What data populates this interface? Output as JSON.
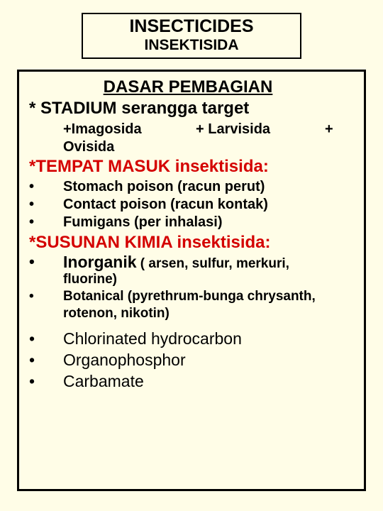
{
  "title": {
    "line1": "INSECTICIDES",
    "line2": "INSEKTISIDA"
  },
  "basis": "DASAR PEMBAGIAN",
  "stadium": {
    "header": "* STADIUM serangga target",
    "item1": "+Imagosida",
    "item2": "+ Larvisida",
    "plus": "+",
    "item3": "Ovisida"
  },
  "tempat": {
    "header": "*TEMPAT MASUK insektisida:",
    "b1": "Stomach poison (racun perut)",
    "b2": "Contact poison (racun kontak)",
    "b3": "Fumigans (per inhalasi)"
  },
  "susunan": {
    "header": "*SUSUNAN KIMIA insektisida:",
    "inorganik_main": "Inorganik",
    "inorganik_paren": "  ( arsen, sulfur, merkuri,",
    "fluorine": "fluorine)",
    "botanical": "Botanical (pyrethrum-bunga chrysanth, rotenon, nikotin)",
    "c1": "Chlorinated hydrocarbon",
    "c2": "Organophosphor",
    "c3": "Carbamate"
  },
  "bullet": "•",
  "colors": {
    "background": "#fffde7",
    "accent": "#d40000",
    "text": "#000000",
    "border": "#000000"
  }
}
